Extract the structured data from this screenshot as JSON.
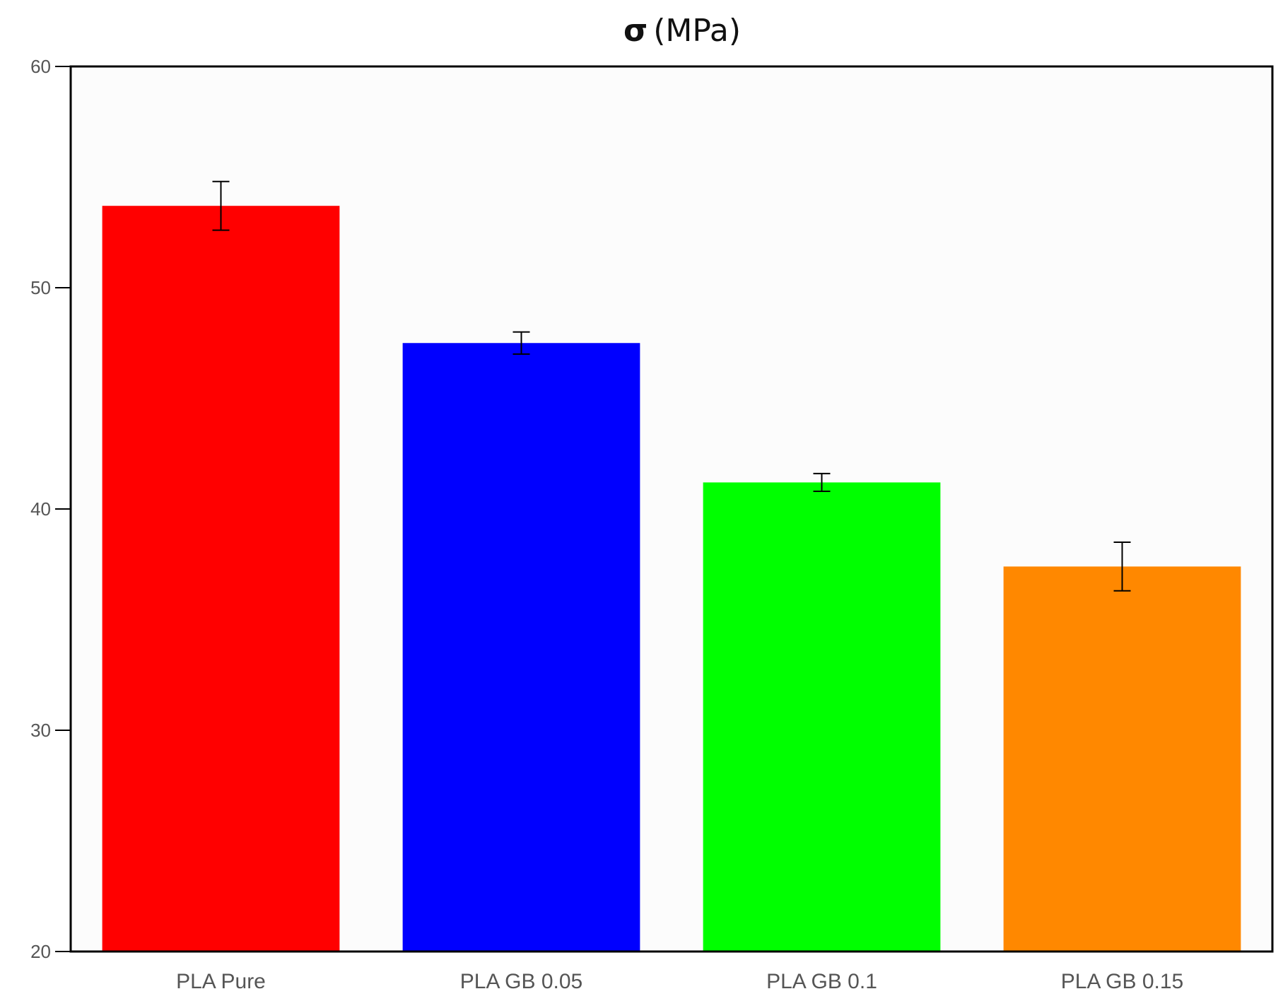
{
  "chart_data": {
    "type": "bar",
    "title": "(MPa)",
    "title_symbol": "σ",
    "xlabel": "",
    "ylabel": "",
    "categories": [
      "PLA Pure",
      "PLA GB 0.05",
      "PLA GB 0.1",
      "PLA GB 0.15"
    ],
    "values": [
      53.7,
      47.5,
      41.2,
      37.4
    ],
    "errors": [
      1.1,
      0.5,
      0.4,
      1.1
    ],
    "colors": [
      "#ff0000",
      "#0000ff",
      "#00ff00",
      "#ff8800"
    ],
    "ylim": [
      20,
      60
    ],
    "yticks": [
      20,
      30,
      40,
      50,
      60
    ],
    "grid": false,
    "legend": "none"
  }
}
